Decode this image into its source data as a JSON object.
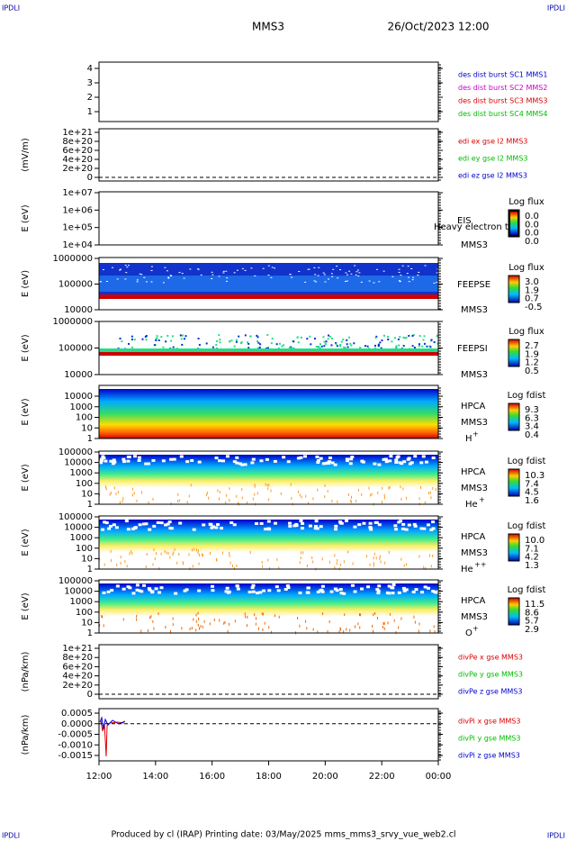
{
  "header": {
    "left": "IPDLI",
    "right": "IPDLI",
    "title": "MMS3",
    "date": "26/Oct/2023 12:00"
  },
  "footer": {
    "left": "IPDLI",
    "right": "IPDLI",
    "text": "Produced by cl (IRAP)   Printing date: 03/May/2025   mms_mms3_srvy_vue_web2.cl"
  },
  "xticks": [
    "12:00",
    "14:00",
    "16:00",
    "18:00",
    "20:00",
    "22:00",
    "00:00"
  ],
  "panels": [
    {
      "yticks": [
        "4",
        "3",
        "2",
        "1"
      ],
      "labels": [
        {
          "text": "des dist burst SC1 MMS1",
          "color": "#0000cc"
        },
        {
          "text": "des dist burst SC2 MMS2",
          "color": "#cc00cc"
        },
        {
          "text": "des dist burst SC3 MMS3",
          "color": "#dd0000"
        },
        {
          "text": "des dist burst SC4 MMS4",
          "color": "#00bb00"
        }
      ]
    },
    {
      "ylabel": "(mV/m)",
      "yticks": [
        "1e+21",
        "8e+20",
        "6e+20",
        "4e+20",
        "2e+20",
        "0"
      ],
      "labels": [
        {
          "text": "edi ex gse l2 MMS3",
          "color": "#dd0000"
        },
        {
          "text": "edi ey gse l2 MMS3",
          "color": "#00bb00"
        },
        {
          "text": "edi ez gse l2 MMS3",
          "color": "#0000cc"
        }
      ]
    },
    {
      "ylabel": "E (eV)",
      "yticks": [
        "1e+07",
        "1e+06",
        "1e+05",
        "1e+04"
      ],
      "instrument": "EIS",
      "sc": "MMS3",
      "overlay": "Heavy electron tof",
      "colorbar": {
        "title": "Log flux",
        "ticks": [
          "0.0",
          "0.0",
          "0.0",
          "0.0"
        ]
      }
    },
    {
      "ylabel": "E (eV)",
      "yticks": [
        "1000000",
        "100000",
        "10000"
      ],
      "instrument": "FEEPSE",
      "sc": "MMS3",
      "colorbar": {
        "title": "Log flux",
        "ticks": [
          "3.0",
          "1.9",
          "0.7",
          "-0.5"
        ]
      }
    },
    {
      "ylabel": "E (eV)",
      "yticks": [
        "1000000",
        "100000",
        "10000"
      ],
      "instrument": "FEEPSI",
      "sc": "MMS3",
      "colorbar": {
        "title": "Log flux",
        "ticks": [
          "2.7",
          "1.9",
          "1.2",
          "0.5"
        ]
      }
    },
    {
      "ylabel": "E (eV)",
      "yticks": [
        "10000",
        "1000",
        "100",
        "10",
        "1"
      ],
      "instrument": "HPCA",
      "sc": "MMS3",
      "species": "H",
      "charge": "+",
      "colorbar": {
        "title": "Log fdist",
        "ticks": [
          "9.3",
          "6.3",
          "3.4",
          "0.4"
        ]
      }
    },
    {
      "ylabel": "E (eV)",
      "yticks": [
        "100000",
        "10000",
        "1000",
        "100",
        "10",
        "1"
      ],
      "instrument": "HPCA",
      "sc": "MMS3",
      "species": "He",
      "charge": "+",
      "colorbar": {
        "title": "Log fdist",
        "ticks": [
          "10.3",
          "7.4",
          "4.5",
          "1.6"
        ]
      }
    },
    {
      "ylabel": "E (eV)",
      "yticks": [
        "100000",
        "10000",
        "1000",
        "100",
        "10",
        "1"
      ],
      "instrument": "HPCA",
      "sc": "MMS3",
      "species": "He",
      "charge": "++",
      "colorbar": {
        "title": "Log fdist",
        "ticks": [
          "10.0",
          "7.1",
          "4.2",
          "1.3"
        ]
      }
    },
    {
      "ylabel": "E (eV)",
      "yticks": [
        "100000",
        "10000",
        "1000",
        "100",
        "10",
        "1"
      ],
      "instrument": "HPCA",
      "sc": "MMS3",
      "species": "O",
      "charge": "+",
      "colorbar": {
        "title": "Log fdist",
        "ticks": [
          "11.5",
          "8.6",
          "5.7",
          "2.9"
        ]
      }
    },
    {
      "ylabel": "(nPa/km)",
      "yticks": [
        "1e+21",
        "8e+20",
        "6e+20",
        "4e+20",
        "2e+20",
        "0"
      ],
      "labels": [
        {
          "text": "divPe x gse MMS3",
          "color": "#dd0000"
        },
        {
          "text": "divPe y gse MMS3",
          "color": "#00bb00"
        },
        {
          "text": "divPe z gse MMS3",
          "color": "#0000cc"
        }
      ]
    },
    {
      "ylabel": "(nPa/km)",
      "yticks": [
        "0.0005",
        "0.0000",
        "-0.0005",
        "-0.0010",
        "-0.0015"
      ],
      "labels": [
        {
          "text": "divPi x gse MMS3",
          "color": "#dd0000"
        },
        {
          "text": "divPi y gse MMS3",
          "color": "#00bb00"
        },
        {
          "text": "divPi z gse MMS3",
          "color": "#0000cc"
        }
      ]
    }
  ]
}
